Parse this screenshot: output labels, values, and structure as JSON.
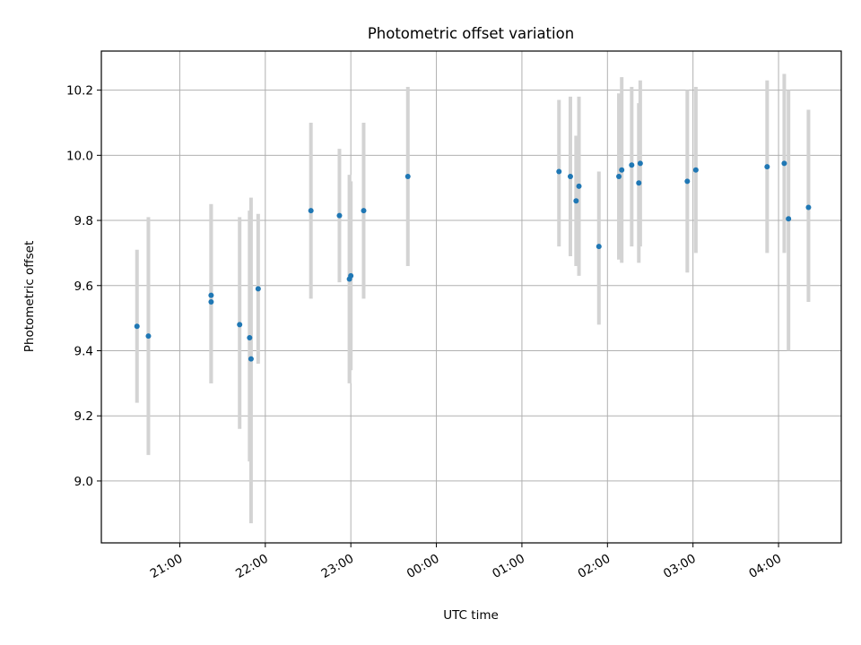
{
  "chart_data": {
    "type": "scatter",
    "title": "Photometric offset variation",
    "xlabel": "UTC time",
    "ylabel": "Photometric offset",
    "x_axis": {
      "kind": "time",
      "range": [
        "20:05",
        "04:44"
      ],
      "ticks": [
        "21:00",
        "22:00",
        "23:00",
        "00:00",
        "01:00",
        "02:00",
        "03:00",
        "04:00"
      ]
    },
    "y_axis": {
      "range": [
        8.81,
        10.32
      ],
      "ticks": [
        9.0,
        9.2,
        9.4,
        9.6,
        9.8,
        10.0,
        10.2
      ],
      "tick_labels": [
        "9.0",
        "9.2",
        "9.4",
        "9.6",
        "9.8",
        "10.0",
        "10.2"
      ]
    },
    "grid": true,
    "legend": "none",
    "colors": {
      "points": "#1f77b4",
      "errorbars": "#d3d3d3",
      "grid": "#b0b0b0"
    },
    "points": [
      {
        "time": "20:30",
        "y": 9.475,
        "ylow": 9.24,
        "yhigh": 9.71
      },
      {
        "time": "20:38",
        "y": 9.445,
        "ylow": 9.08,
        "yhigh": 9.81
      },
      {
        "time": "21:22",
        "y": 9.57,
        "ylow": 9.3,
        "yhigh": 9.85
      },
      {
        "time": "21:22",
        "y": 9.55,
        "ylow": 9.3,
        "yhigh": 9.85
      },
      {
        "time": "21:42",
        "y": 9.48,
        "ylow": 9.16,
        "yhigh": 9.81
      },
      {
        "time": "21:49",
        "y": 9.44,
        "ylow": 9.06,
        "yhigh": 9.83
      },
      {
        "time": "21:50",
        "y": 9.375,
        "ylow": 8.87,
        "yhigh": 9.87
      },
      {
        "time": "21:55",
        "y": 9.59,
        "ylow": 9.36,
        "yhigh": 9.82
      },
      {
        "time": "22:32",
        "y": 9.83,
        "ylow": 9.56,
        "yhigh": 10.1
      },
      {
        "time": "22:52",
        "y": 9.815,
        "ylow": 9.61,
        "yhigh": 10.02
      },
      {
        "time": "22:59",
        "y": 9.62,
        "ylow": 9.3,
        "yhigh": 9.94
      },
      {
        "time": "23:00",
        "y": 9.63,
        "ylow": 9.34,
        "yhigh": 9.92
      },
      {
        "time": "23:09",
        "y": 9.83,
        "ylow": 9.56,
        "yhigh": 10.1
      },
      {
        "time": "23:40",
        "y": 9.935,
        "ylow": 9.66,
        "yhigh": 10.21
      },
      {
        "time": "01:26",
        "y": 9.95,
        "ylow": 9.72,
        "yhigh": 10.17
      },
      {
        "time": "01:34",
        "y": 9.935,
        "ylow": 9.69,
        "yhigh": 10.18
      },
      {
        "time": "01:38",
        "y": 9.86,
        "ylow": 9.66,
        "yhigh": 10.06
      },
      {
        "time": "01:40",
        "y": 9.905,
        "ylow": 9.63,
        "yhigh": 10.18
      },
      {
        "time": "01:54",
        "y": 9.72,
        "ylow": 9.48,
        "yhigh": 9.95
      },
      {
        "time": "02:08",
        "y": 9.935,
        "ylow": 9.68,
        "yhigh": 10.19
      },
      {
        "time": "02:10",
        "y": 9.955,
        "ylow": 9.67,
        "yhigh": 10.24
      },
      {
        "time": "02:17",
        "y": 9.97,
        "ylow": 9.72,
        "yhigh": 10.21
      },
      {
        "time": "02:22",
        "y": 9.915,
        "ylow": 9.67,
        "yhigh": 10.16
      },
      {
        "time": "02:23",
        "y": 9.975,
        "ylow": 9.72,
        "yhigh": 10.23
      },
      {
        "time": "02:56",
        "y": 9.92,
        "ylow": 9.64,
        "yhigh": 10.2
      },
      {
        "time": "03:02",
        "y": 9.955,
        "ylow": 9.7,
        "yhigh": 10.21
      },
      {
        "time": "03:52",
        "y": 9.965,
        "ylow": 9.7,
        "yhigh": 10.23
      },
      {
        "time": "04:04",
        "y": 9.975,
        "ylow": 9.7,
        "yhigh": 10.25
      },
      {
        "time": "04:07",
        "y": 9.805,
        "ylow": 9.4,
        "yhigh": 10.2
      },
      {
        "time": "04:21",
        "y": 9.84,
        "ylow": 9.55,
        "yhigh": 10.14
      }
    ]
  }
}
